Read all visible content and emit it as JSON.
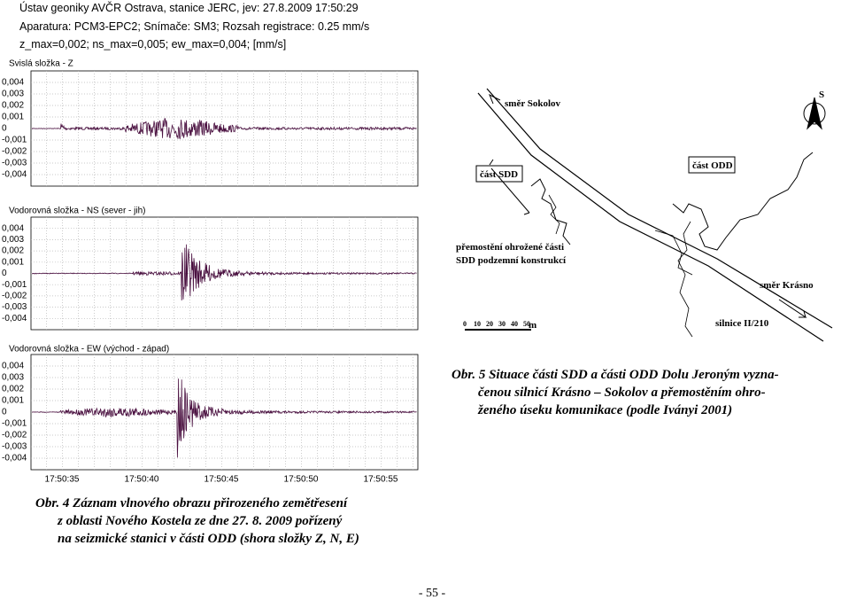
{
  "figure_4": {
    "header": [
      "Ústav geoniky AVČR Ostrava, stanice JERC, jev: 27.8.2009     17:50:29",
      "Aparatura: PCM3-EPC2; Snímače: SM3; Rozsah registrace: 0.25 mm/s",
      "z_max=0,002; ns_max=0,005; ew_max=0,004; [mm/s]"
    ],
    "panels": [
      {
        "title": "Svislá složka - Z",
        "ylim": [
          -0.005,
          0.005
        ]
      },
      {
        "title": "Vodorovná složka - NS (sever - jih)",
        "ylim": [
          -0.005,
          0.005
        ]
      },
      {
        "title": "Vodorovná složka - EW (východ - západ)",
        "ylim": [
          -0.005,
          0.005
        ]
      }
    ],
    "yticks": [
      {
        "value": 0.004,
        "label": "0,004"
      },
      {
        "value": 0.003,
        "label": "0,003"
      },
      {
        "value": 0.002,
        "label": "0,002"
      },
      {
        "value": 0.001,
        "label": "0,001"
      },
      0,
      {
        "value": -0.001,
        "label": "-0,001"
      },
      {
        "value": -0.002,
        "label": "-0,002"
      },
      {
        "value": -0.003,
        "label": "-0,003"
      },
      {
        "value": -0.004,
        "label": "-0,004"
      }
    ],
    "xticks": [
      "17:50:35",
      "17:50:40",
      "17:50:45",
      "17:50:50",
      "17:50:55"
    ],
    "caption": [
      "Obr. 4 Záznam vlnového obrazu přirozeného zemětřesení",
      "z oblasti Nového Kostela ze dne 27. 8. 2009 pořízený",
      "na seizmické stanici v části ODD (shora složky Z, N, E)"
    ]
  },
  "figure_5": {
    "labels": {
      "north": "S",
      "sokolov": "směr Sokolov",
      "sdd": "část SDD",
      "odd": "část ODD",
      "bridge_1": "přemostění ohrožené části",
      "bridge_2": "SDD podzemní konstrukcí",
      "krasno": "směr Krásno",
      "road": "silnice II/210",
      "scale_unit": "m"
    },
    "scale_ticks": [
      "0",
      "10",
      "20",
      "30",
      "40",
      "50"
    ],
    "caption": [
      "Obr. 5 Situace části SDD a části ODD Dolu Jeroným vyzna-",
      "čenou silnicí Krásno – Sokolov a přemostěním ohro-",
      "ženého úseku komunikace (podle Iványi 2001)"
    ]
  },
  "page_number": "- 55 -"
}
